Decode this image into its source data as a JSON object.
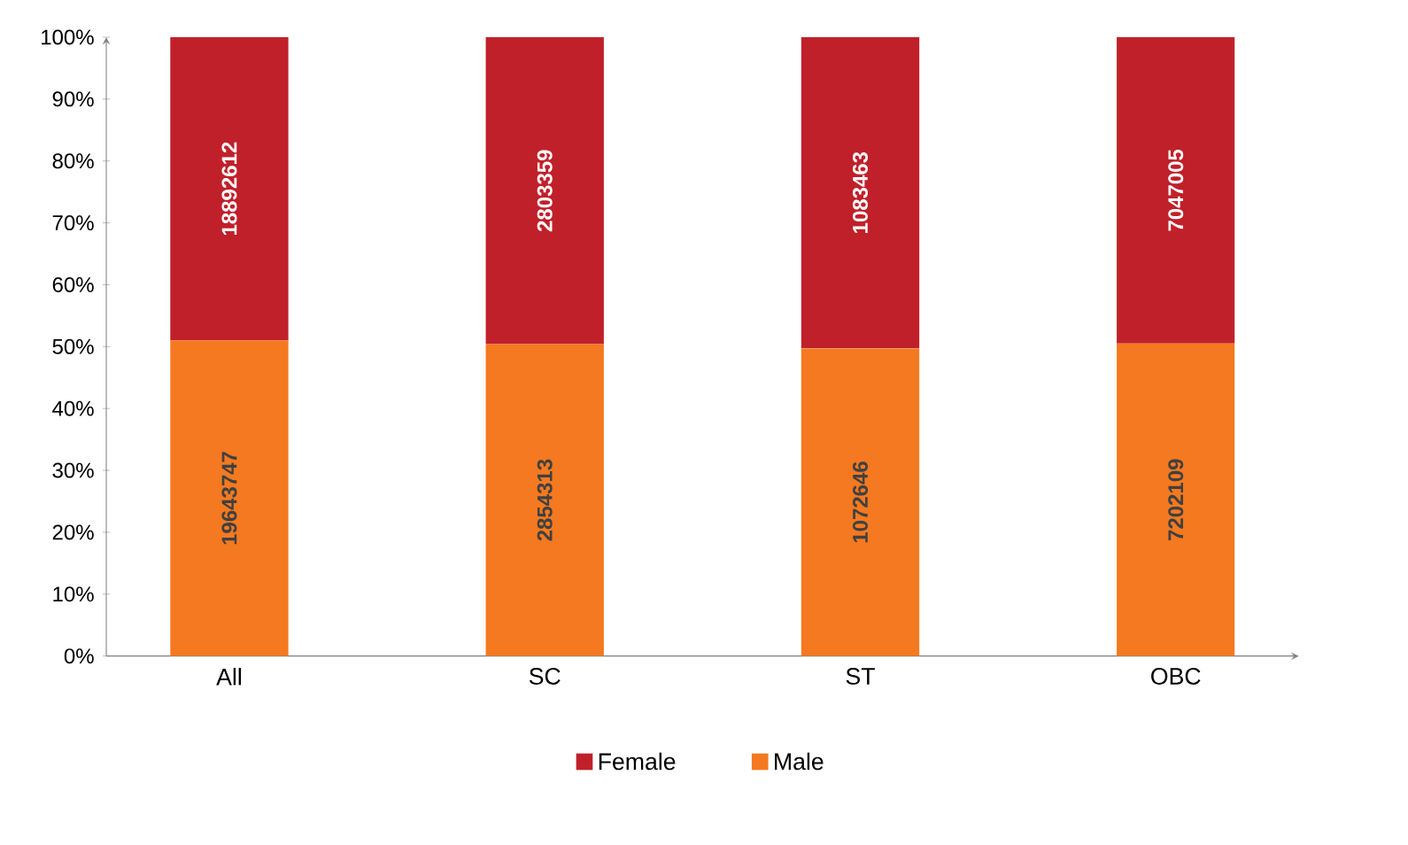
{
  "chart_data": {
    "type": "bar",
    "stacked": true,
    "categories": [
      "All",
      "SC",
      "ST",
      "OBC"
    ],
    "series": [
      {
        "name": "Male",
        "color": "#f47920",
        "values": [
          51.0,
          50.4,
          49.7,
          50.5
        ]
      },
      {
        "name": "Female",
        "color": "#c0202a",
        "values": [
          49.0,
          49.6,
          50.3,
          49.5
        ]
      }
    ],
    "annotations": [
      "19643747",
      "2854313",
      "1072646",
      "7202109",
      "18892612",
      "2803359",
      "1083463",
      "7047005"
    ],
    "ylim": [
      0,
      100
    ],
    "yticks": [
      {
        "value": 0,
        "label": "0%"
      },
      {
        "value": 10,
        "label": "10%"
      },
      {
        "value": 20,
        "label": "20%"
      },
      {
        "value": 30,
        "label": "30%"
      },
      {
        "value": 40,
        "label": "40%"
      },
      {
        "value": 50,
        "label": "50%"
      },
      {
        "value": 60,
        "label": "60%"
      },
      {
        "value": 70,
        "label": "70%"
      },
      {
        "value": 80,
        "label": "80%"
      },
      {
        "value": 90,
        "label": "90%"
      },
      {
        "value": 100,
        "label": "100%"
      }
    ],
    "grid": false,
    "legend": "bottom"
  }
}
